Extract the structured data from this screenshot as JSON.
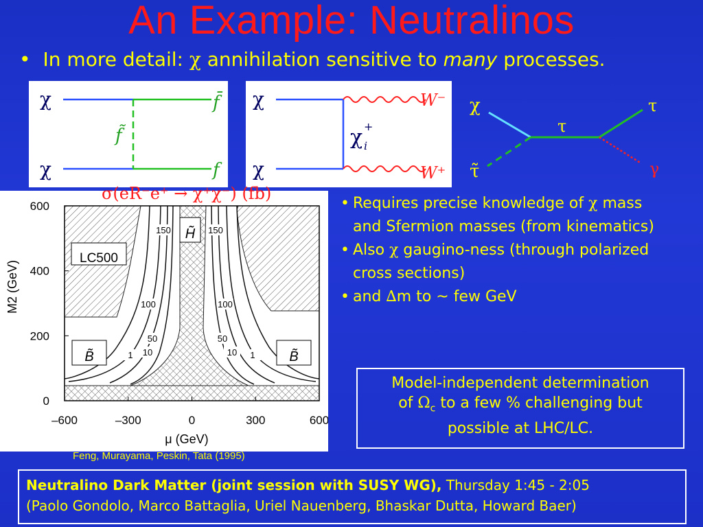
{
  "slide": {
    "title": "An Example: Neutralinos",
    "subtitle_bullet": "•",
    "subtitle_pre": "In more detail: ",
    "subtitle_chi": "χ",
    "subtitle_mid": " annihilation sensitive to ",
    "subtitle_em": "many",
    "subtitle_post": " processes."
  },
  "diagram1": {
    "chi_top": "χ",
    "chi_bottom": "χ",
    "f_bar": "f̄",
    "f": "f",
    "f_tilde": "f̃"
  },
  "diagram2": {
    "chi_top": "χ",
    "chi_bottom": "χ",
    "w_minus": "W⁻",
    "w_plus": "W⁺",
    "chargino": "χ",
    "chargino_sup": "+",
    "chargino_sub": "i"
  },
  "diagram3": {
    "chi": "χ",
    "stau": "τ̃",
    "tau_mid": "τ",
    "tau_out": "τ",
    "gamma": "γ"
  },
  "plot": {
    "title": "σ(eR⁻e⁺ → χ⁺χ⁻) (fb)",
    "chart_data": {
      "type": "contour",
      "xlabel": "μ (GeV)",
      "ylabel": "M2 (GeV)",
      "xlim": [
        -600,
        600
      ],
      "ylim": [
        0,
        600
      ],
      "x_ticks": [
        "–600",
        "–300",
        "0",
        "300",
        "600"
      ],
      "y_ticks": [
        "0",
        "200",
        "400",
        "600"
      ],
      "contour_labels": [
        "150",
        "150",
        "100",
        "100",
        "50",
        "50",
        "10",
        "10",
        "1",
        "1"
      ],
      "region_labels": [
        "H̃",
        "B̃",
        "B̃",
        "LC500"
      ]
    },
    "citation": "Feng, Murayama, Peskin, Tata (1995)"
  },
  "bullets": [
    {
      "pre": "Requires precise knowledge of ",
      "sym": "χ",
      "post": " mass and Sfermion masses (from kinematics)"
    },
    {
      "pre": "Also ",
      "sym": "χ",
      "post": " gaugino-ness (through polarized cross sections)"
    },
    {
      "pre": "and ",
      "sym": "∆",
      "post": "m to ~ few GeV"
    }
  ],
  "boxed": {
    "line1": "Model-independent determination",
    "line2_pre": "of ",
    "omega": "Ω",
    "sub": "c",
    "line2_post": " to a few % challenging but",
    "line3": "possible at LHC/LC."
  },
  "footer": {
    "bold": "Neutralino Dark Matter (joint session with SUSY WG),",
    "time": " Thursday 1:45 - 2:05",
    "names": "(Paolo Gondolo, Marco Battaglia, Uriel Nauenberg, Bhaskar Dutta, Howard Baer)"
  },
  "colors": {
    "background": "#1f35cf",
    "title": "#ff1a1a",
    "text": "#ffff00",
    "chi_line": "#66e0ff",
    "tau_line": "#22c022",
    "gamma_line": "#ff2020"
  }
}
